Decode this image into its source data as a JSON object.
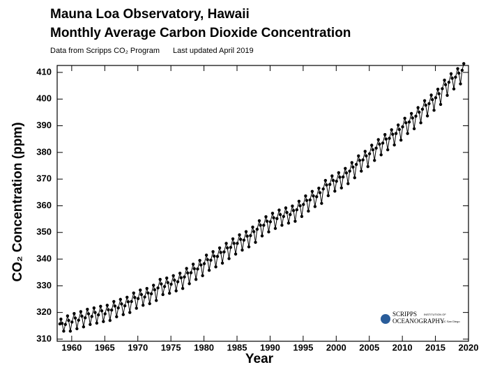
{
  "chart_data": {
    "type": "line",
    "title": "Mauna Loa Observatory, Hawaii",
    "subtitle": "Monthly Average Carbon Dioxide Concentration",
    "source": "Data from Scripps CO₂ Program",
    "updated": "Last updated April 2019",
    "x_label": "Year",
    "y_label": "CO₂ Concentration (ppm)",
    "logo": {
      "name": "SCRIPPS",
      "small": "INSTITUTION OF",
      "line2": "OCEANOGRAPHY",
      "tag": "UC San Diego"
    },
    "xlim": [
      1957.8,
      2020
    ],
    "ylim": [
      309.2,
      412.6
    ],
    "xticks": [
      1960,
      1965,
      1970,
      1975,
      1980,
      1985,
      1990,
      1995,
      2000,
      2005,
      2010,
      2015,
      2020
    ],
    "yticks": [
      310,
      320,
      330,
      340,
      350,
      360,
      370,
      380,
      390,
      400,
      410
    ],
    "color": "#000000",
    "markers": true,
    "x": [
      1958.21,
      1958.37,
      1958.54,
      1958.79,
      1959.04,
      1959.37,
      1959.54,
      1959.79,
      1960.04,
      1960.37,
      1960.54,
      1960.79,
      1961.04,
      1961.37,
      1961.54,
      1961.79,
      1962.04,
      1962.37,
      1962.54,
      1962.79,
      1963.04,
      1963.37,
      1963.54,
      1963.79,
      1964.04,
      1964.37,
      1964.54,
      1964.79,
      1965.04,
      1965.37,
      1965.54,
      1965.79,
      1966.04,
      1966.37,
      1966.54,
      1966.79,
      1967.04,
      1967.37,
      1967.54,
      1967.79,
      1968.04,
      1968.37,
      1968.54,
      1968.79,
      1969.04,
      1969.37,
      1969.54,
      1969.79,
      1970.04,
      1970.37,
      1970.54,
      1970.79,
      1971.04,
      1971.37,
      1971.54,
      1971.79,
      1972.04,
      1972.37,
      1972.54,
      1972.79,
      1973.04,
      1973.37,
      1973.54,
      1973.79,
      1974.04,
      1974.37,
      1974.54,
      1974.79,
      1975.04,
      1975.37,
      1975.54,
      1975.79,
      1976.04,
      1976.37,
      1976.54,
      1976.79,
      1977.04,
      1977.37,
      1977.54,
      1977.79,
      1978.04,
      1978.37,
      1978.54,
      1978.79,
      1979.04,
      1979.37,
      1979.54,
      1979.79,
      1980.04,
      1980.37,
      1980.54,
      1980.79,
      1981.04,
      1981.37,
      1981.54,
      1981.79,
      1982.04,
      1982.37,
      1982.54,
      1982.79,
      1983.04,
      1983.37,
      1983.54,
      1983.79,
      1984.04,
      1984.37,
      1984.54,
      1984.79,
      1985.04,
      1985.37,
      1985.54,
      1985.79,
      1986.04,
      1986.37,
      1986.54,
      1986.79,
      1987.04,
      1987.37,
      1987.54,
      1987.79,
      1988.04,
      1988.37,
      1988.54,
      1988.79,
      1989.04,
      1989.37,
      1989.54,
      1989.79,
      1990.04,
      1990.37,
      1990.54,
      1990.79,
      1991.04,
      1991.37,
      1991.54,
      1991.79,
      1992.04,
      1992.37,
      1992.54,
      1992.79,
      1993.04,
      1993.37,
      1993.54,
      1993.79,
      1994.04,
      1994.37,
      1994.54,
      1994.79,
      1995.04,
      1995.37,
      1995.54,
      1995.79,
      1996.04,
      1996.37,
      1996.54,
      1996.79,
      1997.04,
      1997.37,
      1997.54,
      1997.79,
      1998.04,
      1998.37,
      1998.54,
      1998.79,
      1999.04,
      1999.37,
      1999.54,
      1999.79,
      2000.04,
      2000.37,
      2000.54,
      2000.79,
      2001.04,
      2001.37,
      2001.54,
      2001.79,
      2002.04,
      2002.37,
      2002.54,
      2002.79,
      2003.04,
      2003.37,
      2003.54,
      2003.79,
      2004.04,
      2004.37,
      2004.54,
      2004.79,
      2005.04,
      2005.37,
      2005.54,
      2005.79,
      2006.04,
      2006.37,
      2006.54,
      2006.79,
      2007.04,
      2007.37,
      2007.54,
      2007.79,
      2008.04,
      2008.37,
      2008.54,
      2008.79,
      2009.04,
      2009.37,
      2009.54,
      2009.79,
      2010.04,
      2010.37,
      2010.54,
      2010.79,
      2011.04,
      2011.37,
      2011.54,
      2011.79,
      2012.04,
      2012.37,
      2012.54,
      2012.79,
      2013.04,
      2013.37,
      2013.54,
      2013.79,
      2014.04,
      2014.37,
      2014.54,
      2014.79,
      2015.04,
      2015.37,
      2015.54,
      2015.79,
      2016.04,
      2016.37,
      2016.54,
      2016.79,
      2017.04,
      2017.37,
      2017.54,
      2017.79,
      2018.04,
      2018.37,
      2018.54,
      2018.79,
      2019.04,
      2019.29
    ],
    "values": [
      315.7,
      317.5,
      315.9,
      313.0,
      315.5,
      318.7,
      317.0,
      313.0,
      316.4,
      319.6,
      317.9,
      313.9,
      317.1,
      320.3,
      318.6,
      314.6,
      318.0,
      321.2,
      319.5,
      315.5,
      318.5,
      321.7,
      320.0,
      316.0,
      319.1,
      322.3,
      320.6,
      316.6,
      319.5,
      322.7,
      321.0,
      317.0,
      320.9,
      324.1,
      322.4,
      318.4,
      321.7,
      324.9,
      323.2,
      319.2,
      322.5,
      325.7,
      324.0,
      320.0,
      324.1,
      327.3,
      325.6,
      321.6,
      325.2,
      328.4,
      326.7,
      322.7,
      325.8,
      329.0,
      327.3,
      323.3,
      327.0,
      330.2,
      328.5,
      324.5,
      329.2,
      332.4,
      330.7,
      326.7,
      329.7,
      332.9,
      331.2,
      327.2,
      330.6,
      333.8,
      332.1,
      328.1,
      331.5,
      334.7,
      333.0,
      329.0,
      333.3,
      336.5,
      334.8,
      330.8,
      334.9,
      338.1,
      336.4,
      332.4,
      336.3,
      339.5,
      337.8,
      333.8,
      338.3,
      341.5,
      339.8,
      335.8,
      339.6,
      342.8,
      341.1,
      337.1,
      341.0,
      344.2,
      342.5,
      338.5,
      342.7,
      345.9,
      344.2,
      340.2,
      344.4,
      347.6,
      345.9,
      341.9,
      345.9,
      349.1,
      347.4,
      343.4,
      347.1,
      350.3,
      348.6,
      344.6,
      348.8,
      352.0,
      350.3,
      346.3,
      351.2,
      354.4,
      352.7,
      348.7,
      352.7,
      355.9,
      354.2,
      350.2,
      354.0,
      357.2,
      355.5,
      351.5,
      355.2,
      358.4,
      356.7,
      352.7,
      356.0,
      359.2,
      357.5,
      353.5,
      356.7,
      359.9,
      358.2,
      354.2,
      358.5,
      361.7,
      360.0,
      356.0,
      360.5,
      363.7,
      362.0,
      358.0,
      362.2,
      365.4,
      363.7,
      359.7,
      363.4,
      366.6,
      364.9,
      360.9,
      366.3,
      369.5,
      367.8,
      363.8,
      368.0,
      371.2,
      369.5,
      365.5,
      369.2,
      372.4,
      370.7,
      366.7,
      370.8,
      374.0,
      372.3,
      368.3,
      373.0,
      376.2,
      374.5,
      370.5,
      375.5,
      378.7,
      377.0,
      373.0,
      377.2,
      380.4,
      378.7,
      374.7,
      379.5,
      382.7,
      381.0,
      377.0,
      381.6,
      384.8,
      383.1,
      379.1,
      383.5,
      386.7,
      385.0,
      381.0,
      385.3,
      388.5,
      386.8,
      382.8,
      387.1,
      390.3,
      388.6,
      384.6,
      389.6,
      392.8,
      391.1,
      387.1,
      391.4,
      394.6,
      392.9,
      388.9,
      393.6,
      396.8,
      395.1,
      391.1,
      396.2,
      399.4,
      397.7,
      393.7,
      398.3,
      401.5,
      399.8,
      395.8,
      400.5,
      403.7,
      402.0,
      398.0,
      403.9,
      407.1,
      405.4,
      401.4,
      406.3,
      409.5,
      407.8,
      403.8,
      408.2,
      411.4,
      409.7,
      405.7,
      410.8,
      413.3
    ]
  }
}
